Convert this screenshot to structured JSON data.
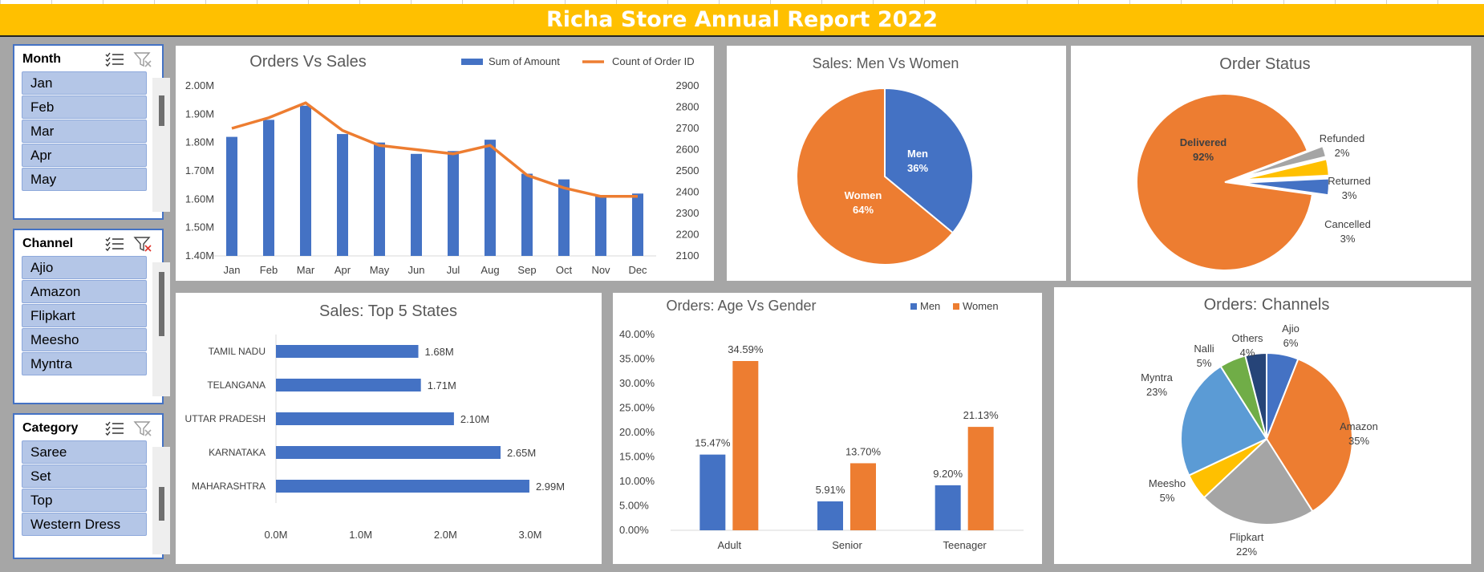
{
  "title": "Richa Store Annual Report 2022",
  "colors": {
    "blue": "#4472c4",
    "orange": "#ed7d31",
    "gray": "#a5a5a5",
    "yellow": "#ffc000",
    "lightblue": "#5b9bd5",
    "green": "#70ad47",
    "navy": "#264478",
    "banner": "#ffc000"
  },
  "slicers": [
    {
      "header": "Month",
      "items": [
        "Jan",
        "Feb",
        "Mar",
        "Apr",
        "May"
      ],
      "multi_select_icon": "multi-select-icon",
      "filter_icon": "clear-filter-icon",
      "filter_active": false
    },
    {
      "header": "Channel",
      "items": [
        "Ajio",
        "Amazon",
        "Flipkart",
        "Meesho",
        "Myntra"
      ],
      "multi_select_icon": "multi-select-icon",
      "filter_icon": "clear-filter-icon",
      "filter_active": true
    },
    {
      "header": "Category",
      "items": [
        "Saree",
        "Set",
        "Top",
        "Western Dress"
      ],
      "multi_select_icon": "multi-select-icon",
      "filter_icon": "clear-filter-icon",
      "filter_active": false
    }
  ],
  "charts": {
    "orders_sales": {
      "title": "Orders Vs Sales",
      "legend": [
        "Sum of Amount",
        "Count of Order ID"
      ],
      "chart_data": {
        "type": "bar",
        "categories": [
          "Jan",
          "Feb",
          "Mar",
          "Apr",
          "May",
          "Jun",
          "Jul",
          "Aug",
          "Sep",
          "Oct",
          "Nov",
          "Dec"
        ],
        "series": [
          {
            "name": "Sum of Amount",
            "type": "bar",
            "axis": "left",
            "values": [
              1.82,
              1.88,
              1.93,
              1.83,
              1.8,
              1.76,
              1.77,
              1.81,
              1.69,
              1.67,
              1.61,
              1.62
            ]
          },
          {
            "name": "Count of Order ID",
            "type": "line",
            "axis": "right",
            "values": [
              2700,
              2750,
              2820,
              2690,
              2620,
              2600,
              2580,
              2620,
              2480,
              2420,
              2380,
              2380
            ]
          }
        ],
        "ylim": [
          1.4,
          2.0
        ],
        "y2lim": [
          2100,
          2900
        ],
        "y_ticks": [
          "2.00M",
          "1.90M",
          "1.80M",
          "1.70M",
          "1.60M",
          "1.50M",
          "1.40M"
        ],
        "y2_ticks": [
          "2900",
          "2800",
          "2700",
          "2600",
          "2500",
          "2400",
          "2300",
          "2200",
          "2100"
        ]
      }
    },
    "men_women": {
      "title": "Sales: Men Vs Women",
      "chart_data": {
        "type": "pie",
        "slices": [
          {
            "label": "Men",
            "pct": "36%",
            "value": 36
          },
          {
            "label": "Women",
            "pct": "64%",
            "value": 64
          }
        ]
      }
    },
    "order_status": {
      "title": "Order Status",
      "chart_data": {
        "type": "pie",
        "slices": [
          {
            "label": "Delivered",
            "pct": "92%",
            "value": 92
          },
          {
            "label": "Refunded",
            "pct": "2%",
            "value": 2
          },
          {
            "label": "Returned",
            "pct": "3%",
            "value": 3
          },
          {
            "label": "Cancelled",
            "pct": "3%",
            "value": 3
          }
        ]
      }
    },
    "top_states": {
      "title": "Sales: Top 5 States",
      "chart_data": {
        "type": "bar",
        "orientation": "horizontal",
        "categories": [
          "TAMIL NADU",
          "TELANGANA",
          "UTTAR PRADESH",
          "KARNATAKA",
          "MAHARASHTRA"
        ],
        "values": [
          1.68,
          1.71,
          2.1,
          2.65,
          2.99
        ],
        "labels": [
          "1.68M",
          "1.71M",
          "2.10M",
          "2.65M",
          "2.99M"
        ],
        "xlim": [
          0,
          3.0
        ],
        "x_ticks": [
          "0.0M",
          "1.0M",
          "2.0M",
          "3.0M"
        ]
      }
    },
    "age_gender": {
      "title": "Orders: Age Vs Gender",
      "legend": [
        "Men",
        "Women"
      ],
      "chart_data": {
        "type": "bar",
        "categories": [
          "Adult",
          "Senior",
          "Teenager"
        ],
        "series": [
          {
            "name": "Men",
            "values": [
              15.47,
              5.91,
              9.2
            ],
            "labels": [
              "15.47%",
              "5.91%",
              "9.20%"
            ]
          },
          {
            "name": "Women",
            "values": [
              34.59,
              13.7,
              21.13
            ],
            "labels": [
              "34.59%",
              "13.70%",
              "21.13%"
            ]
          }
        ],
        "ylim": [
          0,
          40
        ],
        "y_ticks": [
          "40.00%",
          "35.00%",
          "30.00%",
          "25.00%",
          "20.00%",
          "15.00%",
          "10.00%",
          "5.00%",
          "0.00%"
        ]
      }
    },
    "channels": {
      "title": "Orders: Channels",
      "chart_data": {
        "type": "pie",
        "slices": [
          {
            "label": "Ajio",
            "pct": "6%",
            "value": 6
          },
          {
            "label": "Amazon",
            "pct": "35%",
            "value": 35
          },
          {
            "label": "Flipkart",
            "pct": "22%",
            "value": 22
          },
          {
            "label": "Meesho",
            "pct": "5%",
            "value": 5
          },
          {
            "label": "Myntra",
            "pct": "23%",
            "value": 23
          },
          {
            "label": "Nalli",
            "pct": "5%",
            "value": 5
          },
          {
            "label": "Others",
            "pct": "4%",
            "value": 4
          }
        ]
      }
    }
  }
}
